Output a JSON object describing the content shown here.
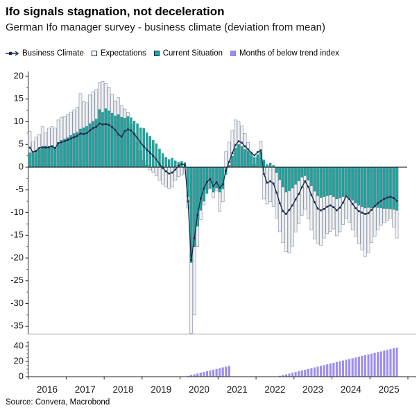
{
  "header": {
    "title": "Ifo signals stagnation, not deceleration",
    "subtitle": "German Ifo manager survey - business climate (deviation from mean)"
  },
  "legend": {
    "items": [
      {
        "label": "Business Climate",
        "swatch": "line-with-square-marker",
        "color": "#14294b"
      },
      {
        "label": "Expectations",
        "swatch": "outlined-square",
        "color": "#ffffff"
      },
      {
        "label": "Current Situation",
        "swatch": "filled-square",
        "color": "#1ca69d"
      },
      {
        "label": "Months of below trend index",
        "swatch": "filled-square",
        "color": "#9d8df1"
      }
    ]
  },
  "footer": {
    "source": "Source: Convera, Macrobond"
  },
  "colors": {
    "line": "#14294b",
    "bar_current": "#1ca69d",
    "bar_current_edge": "#0f7a73",
    "bar_exp_fill": "#f1f1f1",
    "bar_exp_edge": "#8d99ad",
    "bar_trend": "#9d8df1",
    "axis": "#222222",
    "tick_minor": "#555555",
    "zero_line": "#000000",
    "frame": "#cccccc",
    "label": "#1a1a1a"
  },
  "chart_data": [
    {
      "type": "bar",
      "panel": "main",
      "frequency": "monthly",
      "x_start": "2016-01",
      "x_end": "2025-09",
      "x_year_labels": [
        "2016",
        "2017",
        "2018",
        "2019",
        "2020",
        "2021",
        "2022",
        "2023",
        "2024",
        "2025"
      ],
      "y_ticks": [
        20,
        15,
        10,
        5,
        0,
        -5,
        -10,
        -15,
        -20,
        -25,
        -30,
        -35
      ],
      "ylim": [
        -36.5,
        21
      ],
      "grid": false,
      "legend_position": "top",
      "series": [
        {
          "name": "Business Climate",
          "type": "line",
          "values": [
            4.3,
            3.3,
            3.6,
            4.2,
            4.4,
            4.3,
            4.4,
            4.6,
            4.2,
            5.3,
            5.5,
            5.7,
            6.0,
            6.3,
            6.6,
            6.9,
            7.4,
            7.3,
            7.5,
            8.1,
            8.6,
            8.9,
            9.6,
            9.4,
            9.5,
            9.3,
            8.8,
            8.2,
            7.2,
            6.7,
            7.9,
            8.3,
            8.1,
            7.3,
            6.4,
            5.4,
            4.6,
            3.8,
            3.2,
            2.5,
            1.7,
            0.7,
            -0.2,
            -0.9,
            -1.4,
            -1.2,
            -0.5,
            0.3,
            0.7,
            0.5,
            -7.5,
            -20.5,
            -15.6,
            -10.5,
            -6.9,
            -4.7,
            -3.2,
            -2.6,
            -4.2,
            -3.3,
            -4.5,
            -3.8,
            -0.8,
            1.2,
            3.1,
            4.9,
            5.7,
            5.4,
            4.6,
            3.9,
            3.2,
            2.6,
            3.3,
            3.7,
            -1.5,
            -3.4,
            -3.1,
            -3.6,
            -5.6,
            -7.9,
            -9.7,
            -10.3,
            -9.4,
            -8.4,
            -7.1,
            -5.9,
            -4.4,
            -3.1,
            -4.3,
            -6.1,
            -7.7,
            -9.1,
            -9.5,
            -9.2,
            -8.7,
            -8.4,
            -8.8,
            -9.5,
            -8.9,
            -7.8,
            -6.4,
            -7.0,
            -8.1,
            -9.0,
            -9.7,
            -10.0,
            -10.3,
            -10.1,
            -9.4,
            -8.6,
            -7.9,
            -7.4,
            -7.0,
            -6.7,
            -6.5,
            -6.8,
            -7.4
          ]
        },
        {
          "name": "Expectations",
          "type": "bar",
          "values": [
            7.9,
            5.6,
            6.6,
            7.2,
            8.9,
            7.6,
            8.6,
            8.9,
            8.6,
            10.4,
            10.9,
            11.2,
            11.6,
            12.1,
            12.6,
            13.2,
            16.2,
            14.4,
            14.2,
            15.9,
            16.6,
            17.1,
            18.6,
            18.9,
            18.4,
            17.5,
            16.0,
            14.5,
            15.3,
            13.5,
            12.8,
            12.0,
            9.5,
            7.5,
            5.5,
            3.5,
            1.5,
            0.5,
            -0.6,
            -1.1,
            -1.9,
            -2.9,
            -3.7,
            -4.3,
            -4.7,
            -4.4,
            -2.9,
            -2.1,
            -1.7,
            -1.4,
            -9.0,
            -37.0,
            -32.5,
            -17.5,
            -11.5,
            -8.3,
            -4.9,
            -3.1,
            -6.6,
            -5.2,
            -9.7,
            -7.6,
            3.4,
            5.5,
            8.1,
            10.4,
            10.0,
            9.1,
            7.4,
            5.4,
            2.4,
            0.6,
            2.1,
            5.7,
            -7.0,
            -8.1,
            -7.6,
            -8.6,
            -11.2,
            -14.2,
            -16.6,
            -18.6,
            -18.9,
            -17.4,
            -14.3,
            -12.4,
            -10.6,
            -9.2,
            -11.3,
            -13.8,
            -15.8,
            -16.8,
            -17.2,
            -15.6,
            -14.6,
            -14.1,
            -13.6,
            -15.1,
            -14.2,
            -12.6,
            -11.2,
            -12.2,
            -13.8,
            -15.2,
            -16.8,
            -18.2,
            -19.6,
            -18.8,
            -16.6,
            -15.2,
            -13.8,
            -12.8,
            -12.2,
            -11.8,
            -11.2,
            -13.2,
            -15.6
          ]
        },
        {
          "name": "Current Situation",
          "type": "bar",
          "values": [
            3.2,
            3.0,
            3.4,
            3.9,
            4.3,
            4.7,
            4.4,
            4.7,
            4.4,
            5.4,
            5.9,
            6.2,
            6.5,
            7.0,
            7.4,
            7.7,
            8.4,
            8.7,
            9.0,
            9.6,
            10.1,
            10.6,
            12.7,
            12.1,
            12.9,
            12.4,
            11.9,
            11.3,
            11.6,
            11.0,
            10.8,
            11.2,
            10.9,
            10.2,
            9.6,
            8.7,
            8.6,
            7.6,
            6.8,
            5.9,
            5.2,
            4.0,
            3.0,
            2.2,
            1.7,
            2.0,
            1.4,
            1.1,
            1.3,
            1.0,
            -6.5,
            -21.0,
            -17.5,
            -13.0,
            -9.5,
            -7.5,
            -5.8,
            -4.7,
            -5.5,
            -4.6,
            -5.5,
            -4.8,
            -1.6,
            0.4,
            2.4,
            4.2,
            5.0,
            4.6,
            3.9,
            3.5,
            3.0,
            2.2,
            2.8,
            3.4,
            1.6,
            0.6,
            0.9,
            0.4,
            -1.2,
            -2.8,
            -4.4,
            -5.5,
            -5.2,
            -4.6,
            -3.8,
            -3.0,
            -2.2,
            -1.9,
            -2.9,
            -4.1,
            -5.3,
            -6.3,
            -6.7,
            -6.5,
            -6.3,
            -6.1,
            -6.5,
            -7.0,
            -6.8,
            -6.5,
            -6.3,
            -6.7,
            -7.3,
            -7.9,
            -8.4,
            -8.7,
            -9.0,
            -8.9,
            -9.0,
            -8.8,
            -8.9,
            -9.0,
            -9.1,
            -9.1,
            -9.2,
            -9.3,
            -9.5
          ]
        }
      ]
    },
    {
      "type": "bar",
      "panel": "bottom",
      "frequency": "monthly",
      "x_start": "2016-01",
      "x_end": "2025-09",
      "x_year_labels": [
        "2016",
        "2017",
        "2018",
        "2019",
        "2020",
        "2021",
        "2022",
        "2023",
        "2024",
        "2025"
      ],
      "y_ticks": [
        0,
        20,
        40
      ],
      "ylim": [
        0,
        48
      ],
      "grid": false,
      "series": [
        {
          "name": "Months of below trend index",
          "type": "bar",
          "values": [
            0,
            0,
            0,
            0,
            0,
            0,
            0,
            0,
            0,
            0,
            0,
            0,
            0,
            0,
            0,
            0,
            0,
            0,
            0,
            0,
            0,
            0,
            0,
            0,
            0,
            0,
            0,
            0,
            0,
            0,
            0,
            0,
            0,
            0,
            0,
            0,
            0,
            0,
            0,
            0,
            0,
            0,
            0,
            0,
            0,
            0,
            0,
            0,
            0,
            0,
            1,
            2,
            3,
            4,
            5,
            6,
            7,
            8,
            9,
            10,
            11,
            12,
            13,
            14,
            0,
            0,
            0,
            0,
            0,
            0,
            0,
            0,
            0,
            0,
            0,
            0,
            0,
            0,
            0,
            1,
            2,
            3,
            4,
            5,
            6,
            7,
            8,
            9,
            10,
            11,
            12,
            13,
            14,
            15,
            16,
            17,
            18,
            19,
            20,
            21,
            22,
            23,
            24,
            25,
            26,
            27,
            28,
            29,
            30,
            31,
            32,
            33,
            34,
            35,
            36,
            37,
            38
          ]
        }
      ]
    }
  ]
}
